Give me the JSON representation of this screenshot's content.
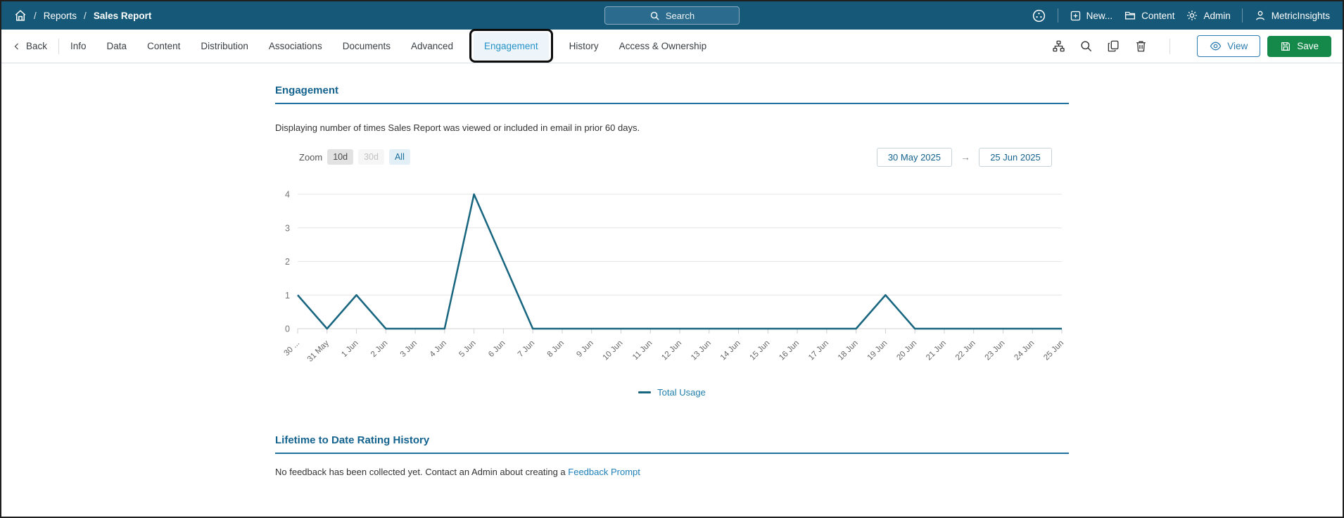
{
  "topbar": {
    "breadcrumb": {
      "separator": "/",
      "items": [
        "Reports",
        "Sales Report"
      ]
    },
    "search_label": "Search",
    "actions": {
      "new_label": "New...",
      "content_label": "Content",
      "admin_label": "Admin",
      "user_label": "MetricInsights"
    }
  },
  "tabbar": {
    "back_label": "Back",
    "tabs": [
      "Info",
      "Data",
      "Content",
      "Distribution",
      "Associations",
      "Documents",
      "Advanced",
      "Engagement",
      "History",
      "Access & Ownership"
    ],
    "active_tab": "Engagement",
    "view_label": "View",
    "save_label": "Save"
  },
  "engagement": {
    "title": "Engagement",
    "description": "Displaying number of times Sales Report was viewed or included in email in prior 60 days.",
    "zoom_label": "Zoom",
    "zoom_options": [
      "10d",
      "30d",
      "All"
    ],
    "zoom_active": "All",
    "zoom_disabled": "30d",
    "date_from": "30 May 2025",
    "date_arrow": "→",
    "date_to": "25 Jun 2025"
  },
  "chart_data": {
    "type": "line",
    "title": "",
    "xlabel": "",
    "ylabel": "",
    "categories": [
      "30 ...",
      "31 May",
      "1 Jun",
      "2 Jun",
      "3 Jun",
      "4 Jun",
      "5 Jun",
      "6 Jun",
      "7 Jun",
      "8 Jun",
      "9 Jun",
      "10 Jun",
      "11 Jun",
      "12 Jun",
      "13 Jun",
      "14 Jun",
      "15 Jun",
      "16 Jun",
      "17 Jun",
      "18 Jun",
      "19 Jun",
      "20 Jun",
      "21 Jun",
      "22 Jun",
      "23 Jun",
      "24 Jun",
      "25 Jun"
    ],
    "series": [
      {
        "name": "Total Usage",
        "values": [
          1,
          0,
          1,
          0,
          0,
          0,
          4,
          2,
          0,
          0,
          0,
          0,
          0,
          0,
          0,
          0,
          0,
          0,
          0,
          0,
          1,
          0,
          0,
          0,
          0,
          0,
          0
        ]
      }
    ],
    "ylim": [
      0,
      4
    ],
    "yticks": [
      0,
      1,
      2,
      3,
      4
    ],
    "grid": true,
    "legend_position": "bottom",
    "line_color": "#17657f"
  },
  "rating": {
    "title": "Lifetime to Date Rating History",
    "text": "No feedback has been collected yet. Contact an Admin about creating a ",
    "link_label": "Feedback Prompt"
  },
  "colors": {
    "navbar_bg": "#165878",
    "active_tab": "#2693c8",
    "section_heading": "#14638f",
    "heading_rule": "#2070a0",
    "chart_line": "#17657f",
    "legend_text": "#1f7fad",
    "save_green": "#15894a",
    "view_blue": "#2b7cb0",
    "link_blue": "#1e7fb8",
    "annotation_black": "#0c0c0c"
  }
}
